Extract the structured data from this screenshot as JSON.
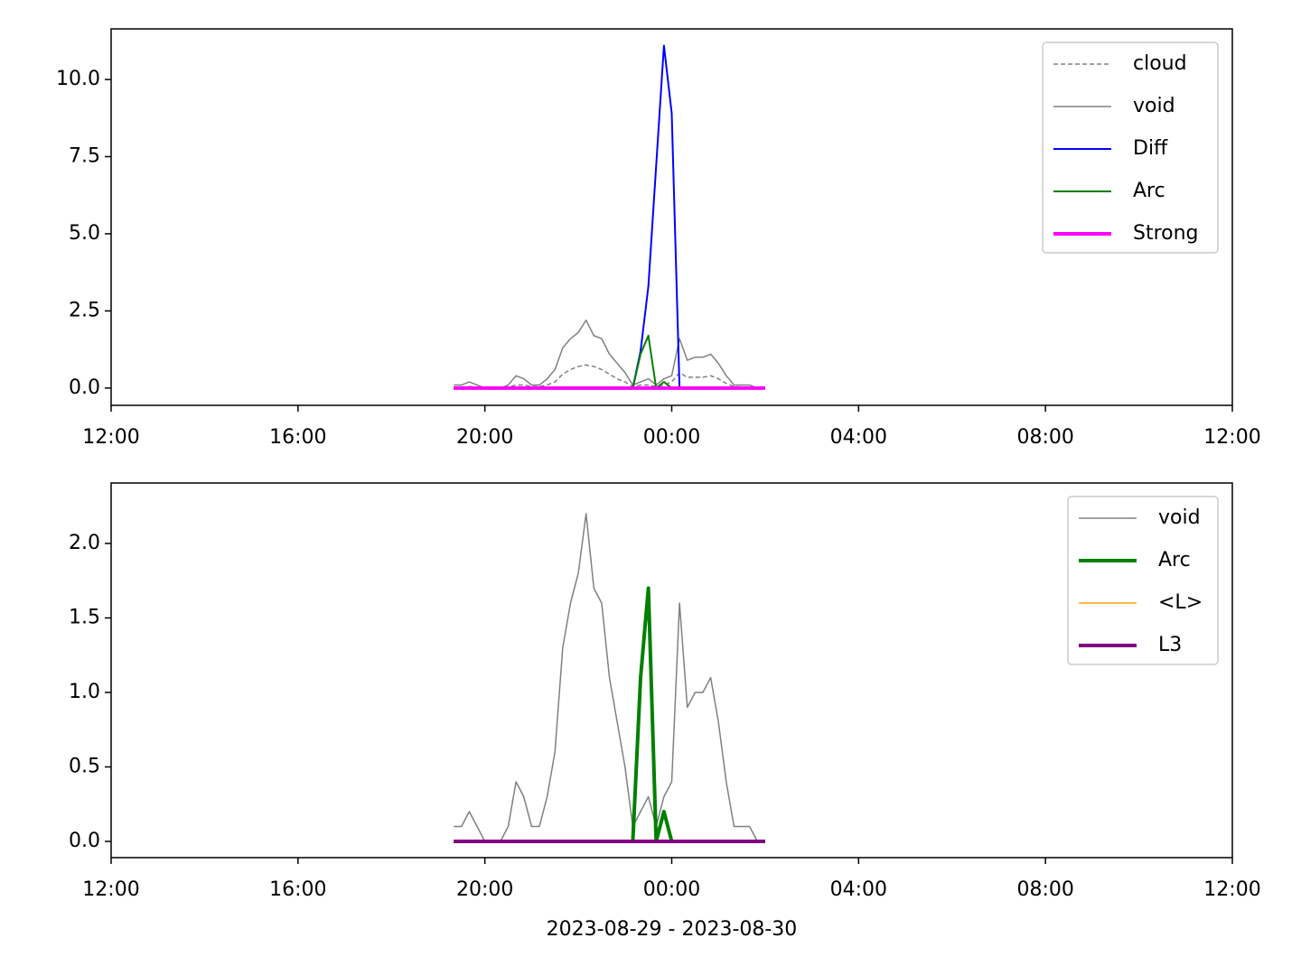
{
  "chart_data": [
    {
      "type": "line",
      "x": [
        "2023-08-29 19:20",
        "2023-08-29 19:30",
        "2023-08-29 19:40",
        "2023-08-29 19:50",
        "2023-08-29 20:00",
        "2023-08-29 20:10",
        "2023-08-29 20:20",
        "2023-08-29 20:30",
        "2023-08-29 20:40",
        "2023-08-29 20:50",
        "2023-08-29 21:00",
        "2023-08-29 21:10",
        "2023-08-29 21:20",
        "2023-08-29 21:30",
        "2023-08-29 21:40",
        "2023-08-29 21:50",
        "2023-08-29 22:00",
        "2023-08-29 22:10",
        "2023-08-29 22:20",
        "2023-08-29 22:30",
        "2023-08-29 22:40",
        "2023-08-29 22:50",
        "2023-08-29 23:00",
        "2023-08-29 23:10",
        "2023-08-29 23:20",
        "2023-08-29 23:30",
        "2023-08-29 23:40",
        "2023-08-29 23:50",
        "2023-08-30 00:00",
        "2023-08-30 00:10",
        "2023-08-30 00:20",
        "2023-08-30 00:30",
        "2023-08-30 00:40",
        "2023-08-30 00:50",
        "2023-08-30 01:00",
        "2023-08-30 01:10",
        "2023-08-30 01:20",
        "2023-08-30 01:30",
        "2023-08-30 01:40",
        "2023-08-30 01:50",
        "2023-08-30 02:00"
      ],
      "series": [
        {
          "name": "cloud",
          "color": "#808080",
          "width": 1.5,
          "dash": true,
          "values": [
            0.03,
            0.03,
            0.05,
            0.03,
            0,
            0,
            0,
            0.03,
            0.1,
            0.1,
            0.05,
            0.05,
            0.1,
            0.2,
            0.45,
            0.6,
            0.7,
            0.75,
            0.7,
            0.6,
            0.45,
            0.3,
            0.2,
            0.05,
            0.1,
            0.1,
            0.05,
            0.1,
            0.2,
            0.5,
            0.35,
            0.35,
            0.35,
            0.4,
            0.3,
            0.15,
            0.05,
            0.03,
            0.03,
            0,
            0
          ]
        },
        {
          "name": "void",
          "color": "#808080",
          "width": 1.5,
          "values": [
            0.1,
            0.1,
            0.2,
            0.1,
            0,
            0,
            0,
            0.1,
            0.4,
            0.3,
            0.1,
            0.1,
            0.3,
            0.6,
            1.3,
            1.6,
            1.8,
            2.2,
            1.7,
            1.6,
            1.1,
            0.8,
            0.5,
            0.1,
            0.2,
            0.3,
            0.1,
            0.3,
            0.4,
            1.6,
            0.9,
            1.0,
            1.0,
            1.1,
            0.8,
            0.4,
            0.1,
            0.1,
            0.1,
            0,
            0
          ]
        },
        {
          "name": "Diff",
          "color": "#0000ff",
          "width": 2,
          "values": [
            0,
            0,
            0,
            0,
            0,
            0,
            0,
            0,
            0,
            0,
            0,
            0,
            0,
            0,
            0,
            0,
            0,
            0,
            0,
            0,
            0,
            0,
            0,
            0,
            1.2,
            3.3,
            7.2,
            11.1,
            8.9,
            0,
            0,
            0,
            0,
            0,
            0,
            0,
            0,
            0,
            0,
            0,
            0
          ]
        },
        {
          "name": "Arc",
          "color": "#008000",
          "width": 2,
          "values": [
            0,
            0,
            0,
            0,
            0,
            0,
            0,
            0,
            0,
            0,
            0,
            0,
            0,
            0,
            0,
            0,
            0,
            0,
            0,
            0,
            0,
            0,
            0,
            0,
            1.1,
            1.7,
            0,
            0.2,
            0,
            0,
            0,
            0,
            0,
            0,
            0,
            0,
            0,
            0,
            0,
            0,
            0
          ]
        },
        {
          "name": "Strong",
          "color": "#ff00ff",
          "width": 4,
          "values": [
            0,
            0,
            0,
            0,
            0,
            0,
            0,
            0,
            0,
            0,
            0,
            0,
            0,
            0,
            0,
            0,
            0,
            0,
            0,
            0,
            0,
            0,
            0,
            0,
            0,
            0,
            0,
            0,
            0,
            0,
            0,
            0,
            0,
            0,
            0,
            0,
            0,
            0,
            0,
            0,
            0
          ]
        }
      ],
      "xlim": [
        "2023-08-29 12:00",
        "2023-08-30 12:00"
      ],
      "xticks": [
        {
          "value": "2023-08-29 12:00",
          "label": "12:00"
        },
        {
          "value": "2023-08-29 16:00",
          "label": "16:00"
        },
        {
          "value": "2023-08-29 20:00",
          "label": "20:00"
        },
        {
          "value": "2023-08-30 00:00",
          "label": "00:00"
        },
        {
          "value": "2023-08-30 04:00",
          "label": "04:00"
        },
        {
          "value": "2023-08-30 08:00",
          "label": "08:00"
        },
        {
          "value": "2023-08-30 12:00",
          "label": "12:00"
        }
      ],
      "ylim": [
        -0.56,
        11.64
      ],
      "yticks": [
        {
          "value": 0,
          "label": "0.0"
        },
        {
          "value": 2.5,
          "label": "2.5"
        },
        {
          "value": 5,
          "label": "5.0"
        },
        {
          "value": 7.5,
          "label": "7.5"
        },
        {
          "value": 10,
          "label": "10.0"
        }
      ],
      "legend": "upper right"
    },
    {
      "type": "line",
      "x": [
        "2023-08-29 19:20",
        "2023-08-29 19:30",
        "2023-08-29 19:40",
        "2023-08-29 19:50",
        "2023-08-29 20:00",
        "2023-08-29 20:10",
        "2023-08-29 20:20",
        "2023-08-29 20:30",
        "2023-08-29 20:40",
        "2023-08-29 20:50",
        "2023-08-29 21:00",
        "2023-08-29 21:10",
        "2023-08-29 21:20",
        "2023-08-29 21:30",
        "2023-08-29 21:40",
        "2023-08-29 21:50",
        "2023-08-29 22:00",
        "2023-08-29 22:10",
        "2023-08-29 22:20",
        "2023-08-29 22:30",
        "2023-08-29 22:40",
        "2023-08-29 22:50",
        "2023-08-29 23:00",
        "2023-08-29 23:10",
        "2023-08-29 23:20",
        "2023-08-29 23:30",
        "2023-08-29 23:40",
        "2023-08-29 23:50",
        "2023-08-30 00:00",
        "2023-08-30 00:10",
        "2023-08-30 00:20",
        "2023-08-30 00:30",
        "2023-08-30 00:40",
        "2023-08-30 00:50",
        "2023-08-30 01:00",
        "2023-08-30 01:10",
        "2023-08-30 01:20",
        "2023-08-30 01:30",
        "2023-08-30 01:40",
        "2023-08-30 01:50",
        "2023-08-30 02:00"
      ],
      "series": [
        {
          "name": "void",
          "color": "#808080",
          "width": 1.5,
          "values": [
            0.1,
            0.1,
            0.2,
            0.1,
            0,
            0,
            0,
            0.1,
            0.4,
            0.3,
            0.1,
            0.1,
            0.3,
            0.6,
            1.3,
            1.6,
            1.8,
            2.2,
            1.7,
            1.6,
            1.1,
            0.8,
            0.5,
            0.1,
            0.2,
            0.3,
            0.1,
            0.3,
            0.4,
            1.6,
            0.9,
            1.0,
            1.0,
            1.1,
            0.8,
            0.4,
            0.1,
            0.1,
            0.1,
            0,
            0
          ]
        },
        {
          "name": "Arc",
          "color": "#008000",
          "width": 4,
          "values": [
            0,
            0,
            0,
            0,
            0,
            0,
            0,
            0,
            0,
            0,
            0,
            0,
            0,
            0,
            0,
            0,
            0,
            0,
            0,
            0,
            0,
            0,
            0,
            0,
            1.1,
            1.7,
            0,
            0.2,
            0,
            0,
            0,
            0,
            0,
            0,
            0,
            0,
            0,
            0,
            0,
            0,
            0
          ]
        },
        {
          "name": "<L>",
          "color": "#ffa500",
          "width": 1.5,
          "values": [
            0,
            0,
            0,
            0,
            0,
            0,
            0,
            0,
            0,
            0,
            0,
            0,
            0,
            0,
            0,
            0,
            0,
            0,
            0,
            0,
            0,
            0,
            0,
            0,
            0,
            0,
            0,
            0,
            0,
            0,
            0,
            0,
            0,
            0,
            0,
            0,
            0,
            0,
            0,
            0,
            0
          ]
        },
        {
          "name": "L3",
          "color": "#800080",
          "width": 4,
          "values": [
            0,
            0,
            0,
            0,
            0,
            0,
            0,
            0,
            0,
            0,
            0,
            0,
            0,
            0,
            0,
            0,
            0,
            0,
            0,
            0,
            0,
            0,
            0,
            0,
            0,
            0,
            0,
            0,
            0,
            0,
            0,
            0,
            0,
            0,
            0,
            0,
            0,
            0,
            0,
            0,
            0
          ]
        }
      ],
      "xlim": [
        "2023-08-29 12:00",
        "2023-08-30 12:00"
      ],
      "xticks": [
        {
          "value": "2023-08-29 12:00",
          "label": "12:00"
        },
        {
          "value": "2023-08-29 16:00",
          "label": "16:00"
        },
        {
          "value": "2023-08-29 20:00",
          "label": "20:00"
        },
        {
          "value": "2023-08-30 00:00",
          "label": "00:00"
        },
        {
          "value": "2023-08-30 04:00",
          "label": "04:00"
        },
        {
          "value": "2023-08-30 08:00",
          "label": "08:00"
        },
        {
          "value": "2023-08-30 12:00",
          "label": "12:00"
        }
      ],
      "ylim": [
        -0.109,
        2.406
      ],
      "yticks": [
        {
          "value": 0,
          "label": "0.0"
        },
        {
          "value": 0.5,
          "label": "0.5"
        },
        {
          "value": 1,
          "label": "1.0"
        },
        {
          "value": 1.5,
          "label": "1.5"
        },
        {
          "value": 2,
          "label": "2.0"
        }
      ],
      "xlabel": "2023-08-29 - 2023-08-30",
      "legend": "upper right"
    }
  ]
}
